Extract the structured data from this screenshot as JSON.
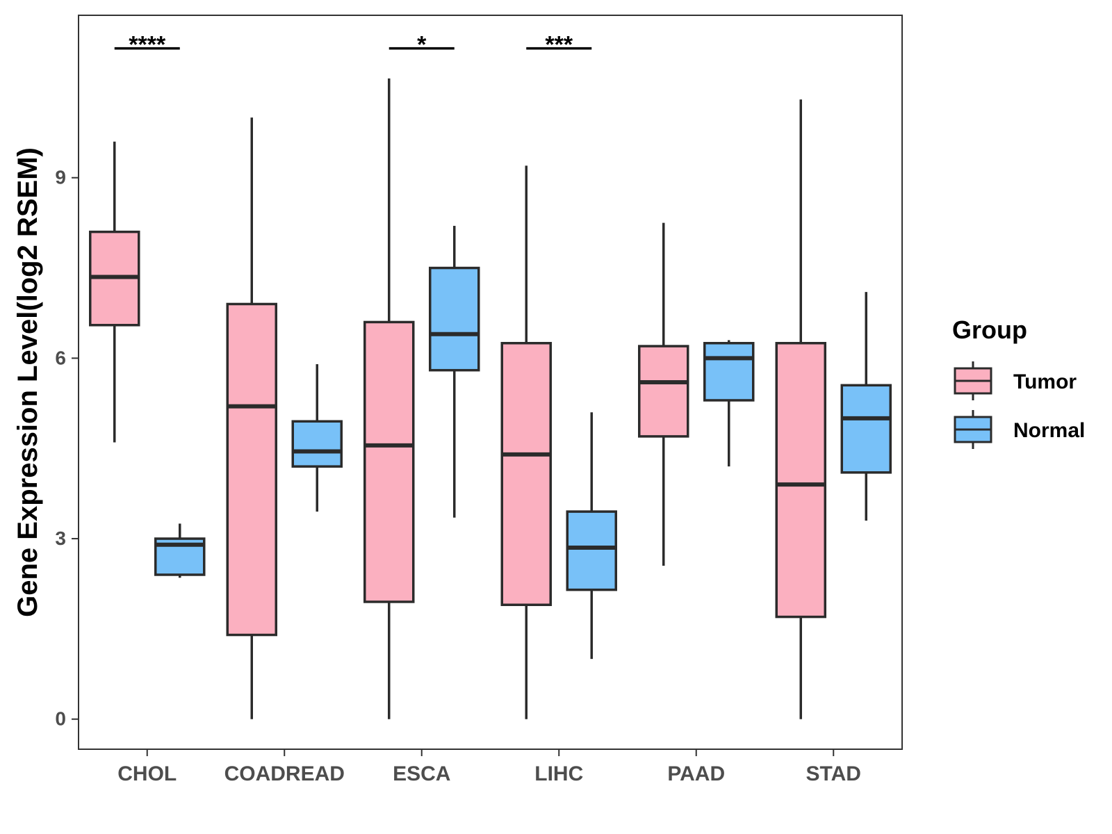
{
  "chart_data": {
    "type": "boxplot",
    "title": "",
    "xlabel": "",
    "ylabel": "Gene Expression Level(log2 RSEM)",
    "ylim": [
      -0.5,
      11.7
    ],
    "yticks": [
      0,
      3,
      6,
      9
    ],
    "categories": [
      "CHOL",
      "COADREAD",
      "ESCA",
      "LIHC",
      "PAAD",
      "STAD"
    ],
    "legend": {
      "title": "Group",
      "position": "right",
      "entries": [
        {
          "name": "Tumor",
          "color": "#FBB0C0"
        },
        {
          "name": "Normal",
          "color": "#78C1F8"
        }
      ]
    },
    "series": [
      {
        "name": "Tumor",
        "color": "#FBB0C0",
        "boxes": [
          {
            "min": 4.6,
            "q1": 6.55,
            "median": 7.35,
            "q3": 8.1,
            "max": 9.6
          },
          {
            "min": 0.0,
            "q1": 1.4,
            "median": 5.2,
            "q3": 6.9,
            "max": 10.0
          },
          {
            "min": 0.0,
            "q1": 1.95,
            "median": 4.55,
            "q3": 6.6,
            "max": 10.65
          },
          {
            "min": 0.0,
            "q1": 1.9,
            "median": 4.4,
            "q3": 6.25,
            "max": 9.2
          },
          {
            "min": 2.55,
            "q1": 4.7,
            "median": 5.6,
            "q3": 6.2,
            "max": 8.25
          },
          {
            "min": 0.0,
            "q1": 1.7,
            "median": 3.9,
            "q3": 6.25,
            "max": 10.3
          }
        ]
      },
      {
        "name": "Normal",
        "color": "#78C1F8",
        "boxes": [
          {
            "min": 2.35,
            "q1": 2.4,
            "median": 2.9,
            "q3": 3.0,
            "max": 3.25
          },
          {
            "min": 3.45,
            "q1": 4.2,
            "median": 4.45,
            "q3": 4.95,
            "max": 5.9
          },
          {
            "min": 3.35,
            "q1": 5.8,
            "median": 6.4,
            "q3": 7.5,
            "max": 8.2
          },
          {
            "min": 1.0,
            "q1": 2.15,
            "median": 2.85,
            "q3": 3.45,
            "max": 5.1
          },
          {
            "min": 4.2,
            "q1": 5.3,
            "median": 6.0,
            "q3": 6.25,
            "max": 6.3
          },
          {
            "min": 3.3,
            "q1": 4.1,
            "median": 5.0,
            "q3": 5.55,
            "max": 7.1
          }
        ]
      }
    ],
    "significance": [
      {
        "category": "CHOL",
        "label": "****"
      },
      {
        "category": "ESCA",
        "label": "*"
      },
      {
        "category": "LIHC",
        "label": "***"
      }
    ],
    "significance_y": 11.15,
    "grid": false
  }
}
